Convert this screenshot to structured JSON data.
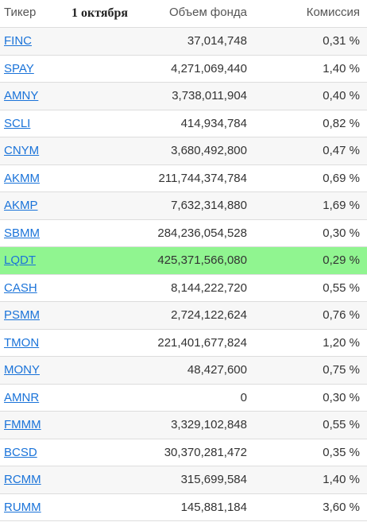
{
  "header": {
    "ticker": "Тикер",
    "date": "1 октября",
    "volume": "Объем фонда",
    "fee": "Комиссия"
  },
  "highlight_color": "#90f590",
  "link_color": "#1a73d9",
  "rows": [
    {
      "ticker": "FINC",
      "volume": "37,014,748",
      "fee": "0,31 %"
    },
    {
      "ticker": "SPAY",
      "volume": "4,271,069,440",
      "fee": "1,40 %"
    },
    {
      "ticker": "AMNY",
      "volume": "3,738,011,904",
      "fee": "0,40 %"
    },
    {
      "ticker": "SCLI",
      "volume": "414,934,784",
      "fee": "0,82 %"
    },
    {
      "ticker": "CNYM",
      "volume": "3,680,492,800",
      "fee": "0,47 %"
    },
    {
      "ticker": "AKMM",
      "volume": "211,744,374,784",
      "fee": "0,69 %"
    },
    {
      "ticker": "AKMP",
      "volume": "7,632,314,880",
      "fee": "1,69 %"
    },
    {
      "ticker": "SBMM",
      "volume": "284,236,054,528",
      "fee": "0,30 %"
    },
    {
      "ticker": "LQDT",
      "volume": "425,371,566,080",
      "fee": "0,29 %"
    },
    {
      "ticker": "CASH",
      "volume": "8,144,222,720",
      "fee": "0,55 %"
    },
    {
      "ticker": "PSMM",
      "volume": "2,724,122,624",
      "fee": "0,76 %"
    },
    {
      "ticker": "TMON",
      "volume": "221,401,677,824",
      "fee": "1,20 %"
    },
    {
      "ticker": "MONY",
      "volume": "48,427,600",
      "fee": "0,75 %"
    },
    {
      "ticker": "AMNR",
      "volume": "0",
      "fee": "0,30 %"
    },
    {
      "ticker": "FMMM",
      "volume": "3,329,102,848",
      "fee": "0,55 %"
    },
    {
      "ticker": "BCSD",
      "volume": "30,370,281,472",
      "fee": "0,35 %"
    },
    {
      "ticker": "RCMM",
      "volume": "315,699,584",
      "fee": "1,40 %"
    },
    {
      "ticker": "RUMM",
      "volume": "145,881,184",
      "fee": "3,60 %"
    }
  ]
}
